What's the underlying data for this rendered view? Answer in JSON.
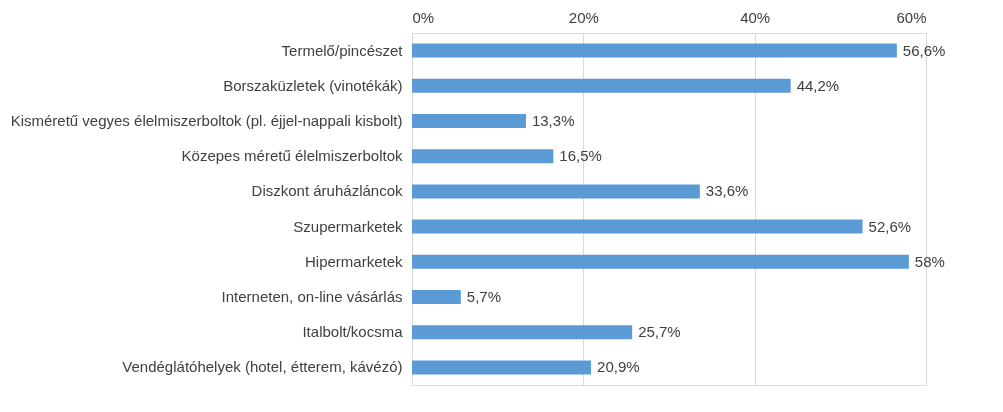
{
  "chart_data": {
    "type": "bar",
    "orientation": "horizontal",
    "categories": [
      "Termelő/pincészet",
      "Borszaküzletek (vinotékák)",
      "Kisméretű vegyes élelmiszerboltok (pl. éjjel-nappali kisbolt)",
      "Közepes méretű élelmiszerboltok",
      "Diszkont áruházláncok",
      "Szupermarketek",
      "Hipermarketek",
      "Interneten, on-line vásárlás",
      "Italbolt/kocsma",
      "Vendéglátóhelyek (hotel, étterem, kávézó)"
    ],
    "values": [
      56.6,
      44.2,
      13.3,
      16.5,
      33.6,
      52.6,
      58,
      5.7,
      25.7,
      20.9
    ],
    "value_labels": [
      "56,6%",
      "44,2%",
      "13,3%",
      "16,5%",
      "33,6%",
      "52,6%",
      "58%",
      "5,7%",
      "25,7%",
      "20,9%"
    ],
    "color": "#5b9bd5",
    "xlim": [
      0,
      60
    ],
    "xticks": [
      {
        "value": 0,
        "label": "0%"
      },
      {
        "value": 20,
        "label": "20%"
      },
      {
        "value": 40,
        "label": "40%"
      },
      {
        "value": 60,
        "label": "60%"
      }
    ],
    "grid": "x"
  }
}
